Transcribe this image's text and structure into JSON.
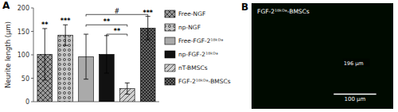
{
  "chart_data": {
    "type": "bar",
    "ylabel": "Neurite length (μm)",
    "categories": [
      "Free-NGF",
      "np-NGF",
      "Free-FGF-2¹⁸ᵏᴰᵃ",
      "np-FGF-2¹⁸ᵏᴰᵃ",
      "nT-BMSCs",
      "FGF-2¹⁸ᵏᴰᵃ-BMSCs"
    ],
    "values": [
      101,
      142,
      96,
      101,
      28,
      157
    ],
    "errors": [
      55,
      22,
      48,
      40,
      12,
      25
    ],
    "colors": [
      "#999999",
      "#c8c8c8",
      "#aaaaaa",
      "#111111",
      "#d0d0d0",
      "#666666"
    ],
    "ylim": [
      0,
      200
    ],
    "yticks": [
      0,
      50,
      100,
      150,
      200
    ],
    "grid": false,
    "legend": "right",
    "tick_labels": "y",
    "sig_labels": [
      "**",
      "***",
      null,
      null,
      null,
      "***"
    ],
    "brackets": [
      {
        "from": 3,
        "to": 4,
        "y": 140,
        "h": 4,
        "label": "**"
      },
      {
        "from": 2,
        "to": 4,
        "y": 160,
        "h": 4,
        "label": "**"
      },
      {
        "from": 2,
        "to": 5,
        "y": 182,
        "h": 4,
        "label": "#"
      }
    ],
    "panel_label": "A",
    "image": {
      "panel_label": "B",
      "title": "FGF-2¹⁸ᵏᴰᵃ-BMSCs",
      "measurement": "196 μm",
      "scale_bar_label": "100 μm"
    }
  }
}
